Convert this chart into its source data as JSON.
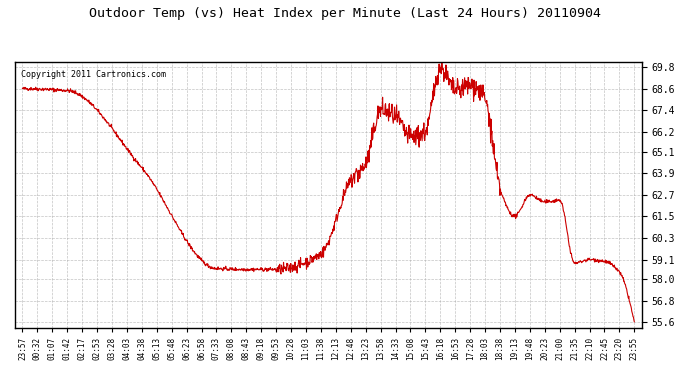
{
  "title": "Outdoor Temp (vs) Heat Index per Minute (Last 24 Hours) 20110904",
  "copyright_text": "Copyright 2011 Cartronics.com",
  "line_color": "#cc0000",
  "background_color": "#ffffff",
  "plot_background": "#ffffff",
  "grid_color": "#aaaaaa",
  "ylim": [
    55.3,
    70.1
  ],
  "yticks": [
    55.6,
    56.8,
    58.0,
    59.1,
    60.3,
    61.5,
    62.7,
    63.9,
    65.1,
    66.2,
    67.4,
    68.6,
    69.8
  ],
  "xtick_labels": [
    "23:57",
    "00:32",
    "01:07",
    "01:42",
    "02:17",
    "02:53",
    "03:28",
    "04:03",
    "04:38",
    "05:13",
    "05:48",
    "06:23",
    "06:58",
    "07:33",
    "08:08",
    "08:43",
    "09:18",
    "09:53",
    "10:28",
    "11:03",
    "11:38",
    "12:13",
    "12:48",
    "13:23",
    "13:58",
    "14:33",
    "15:08",
    "15:43",
    "16:18",
    "16:53",
    "17:28",
    "18:03",
    "18:38",
    "19:13",
    "19:48",
    "20:23",
    "21:00",
    "21:35",
    "22:10",
    "22:45",
    "23:20",
    "23:55"
  ],
  "keypoints": [
    [
      0,
      68.6
    ],
    [
      3,
      68.5
    ],
    [
      8,
      64.2
    ],
    [
      13,
      58.6
    ],
    [
      15,
      58.55
    ],
    [
      17,
      58.55
    ],
    [
      20,
      59.4
    ],
    [
      22,
      63.5
    ],
    [
      23,
      64.4
    ],
    [
      24,
      67.4
    ],
    [
      25,
      67.0
    ],
    [
      26,
      65.9
    ],
    [
      27,
      66.2
    ],
    [
      28,
      69.8
    ],
    [
      29,
      68.5
    ],
    [
      30,
      68.8
    ],
    [
      31,
      68.0
    ],
    [
      32,
      63.0
    ],
    [
      33,
      61.5
    ],
    [
      34,
      62.7
    ],
    [
      35,
      62.3
    ],
    [
      36,
      62.4
    ],
    [
      37,
      58.9
    ],
    [
      38,
      59.1
    ],
    [
      39,
      59.0
    ],
    [
      40,
      58.4
    ],
    [
      41,
      55.6
    ]
  ]
}
